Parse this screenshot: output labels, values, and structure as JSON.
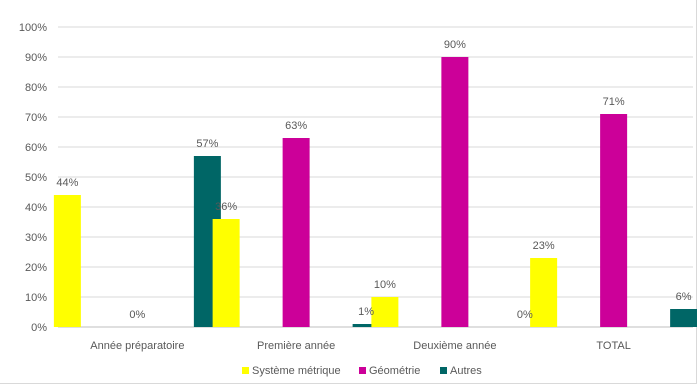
{
  "chart_data": {
    "type": "bar",
    "categories": [
      "Année préparatoire",
      "Première année",
      "Deuxième année",
      "TOTAL"
    ],
    "series": [
      {
        "name": "Système métrique",
        "color": "#FFFF00",
        "values": [
          44,
          36,
          10,
          23
        ],
        "labels": [
          "44%",
          "36%",
          "10%",
          "23%"
        ]
      },
      {
        "name": "Géométrie",
        "color": "#CC0099",
        "values": [
          0,
          63,
          90,
          71
        ],
        "labels": [
          "0%",
          "63%",
          "90%",
          "71%"
        ]
      },
      {
        "name": "Autres",
        "color": "#006666",
        "values": [
          57,
          1,
          0,
          6
        ],
        "labels": [
          "57%",
          "1%",
          "0%",
          "6%"
        ]
      }
    ],
    "y_ticks": [
      "0%",
      "10%",
      "20%",
      "30%",
      "40%",
      "50%",
      "60%",
      "70%",
      "80%",
      "90%",
      "100%"
    ],
    "ylim": [
      0,
      100
    ],
    "grid": true,
    "legend_position": "bottom",
    "title": "",
    "xlabel": "",
    "ylabel": ""
  }
}
